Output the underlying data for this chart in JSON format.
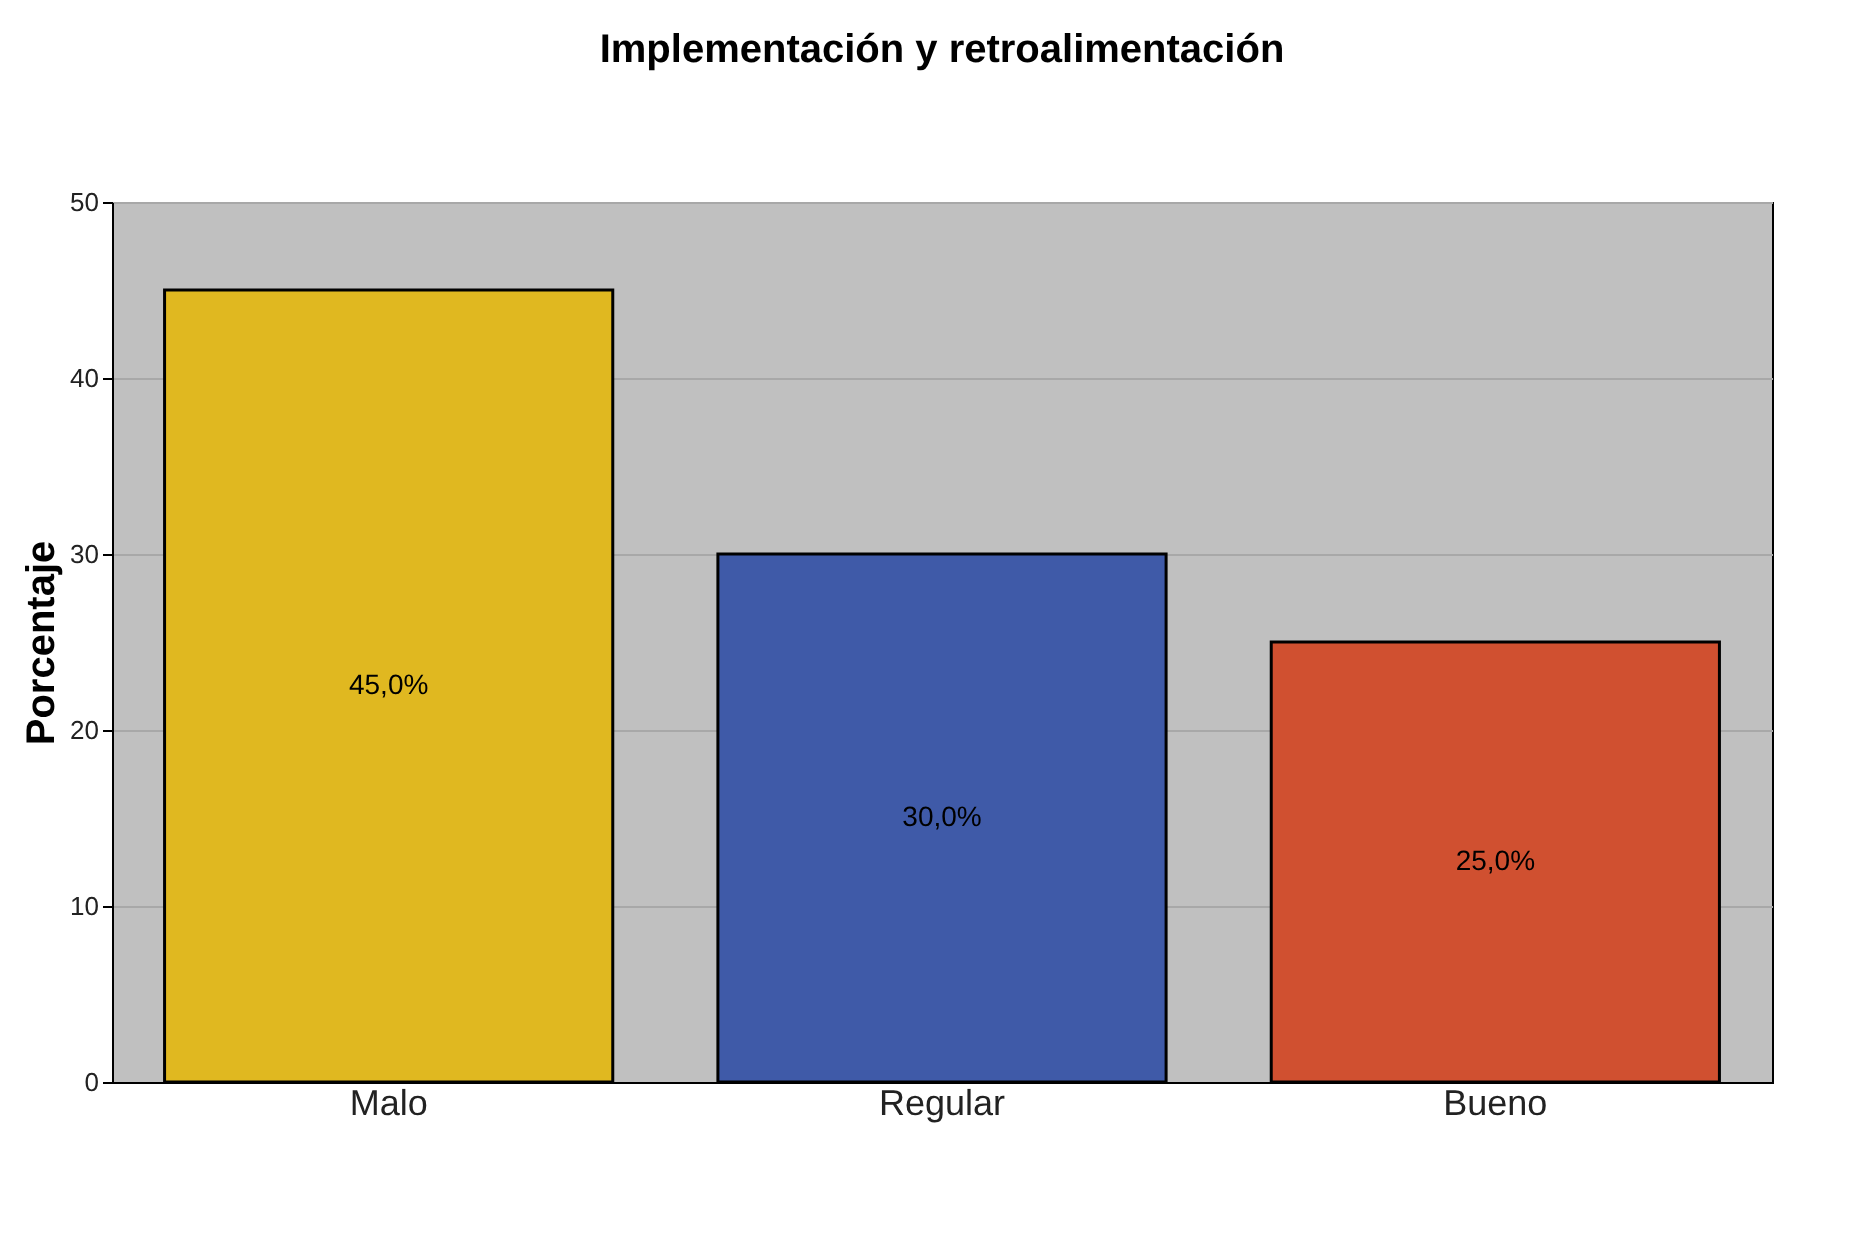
{
  "chart_data": {
    "type": "bar",
    "title": "Implementación y retroalimentación",
    "ylabel": "Porcentaje",
    "categories": [
      "Malo",
      "Regular",
      "Bueno"
    ],
    "values": [
      45,
      30,
      25
    ],
    "colors": [
      "#e0b820",
      "#3f5aa8",
      "#d05030"
    ],
    "value_labels": [
      "45,0%",
      "30,0%",
      "25,0%"
    ],
    "ylim": [
      0,
      50
    ],
    "yticks": [
      0,
      10,
      20,
      30,
      40,
      50
    ],
    "grid": "y"
  }
}
